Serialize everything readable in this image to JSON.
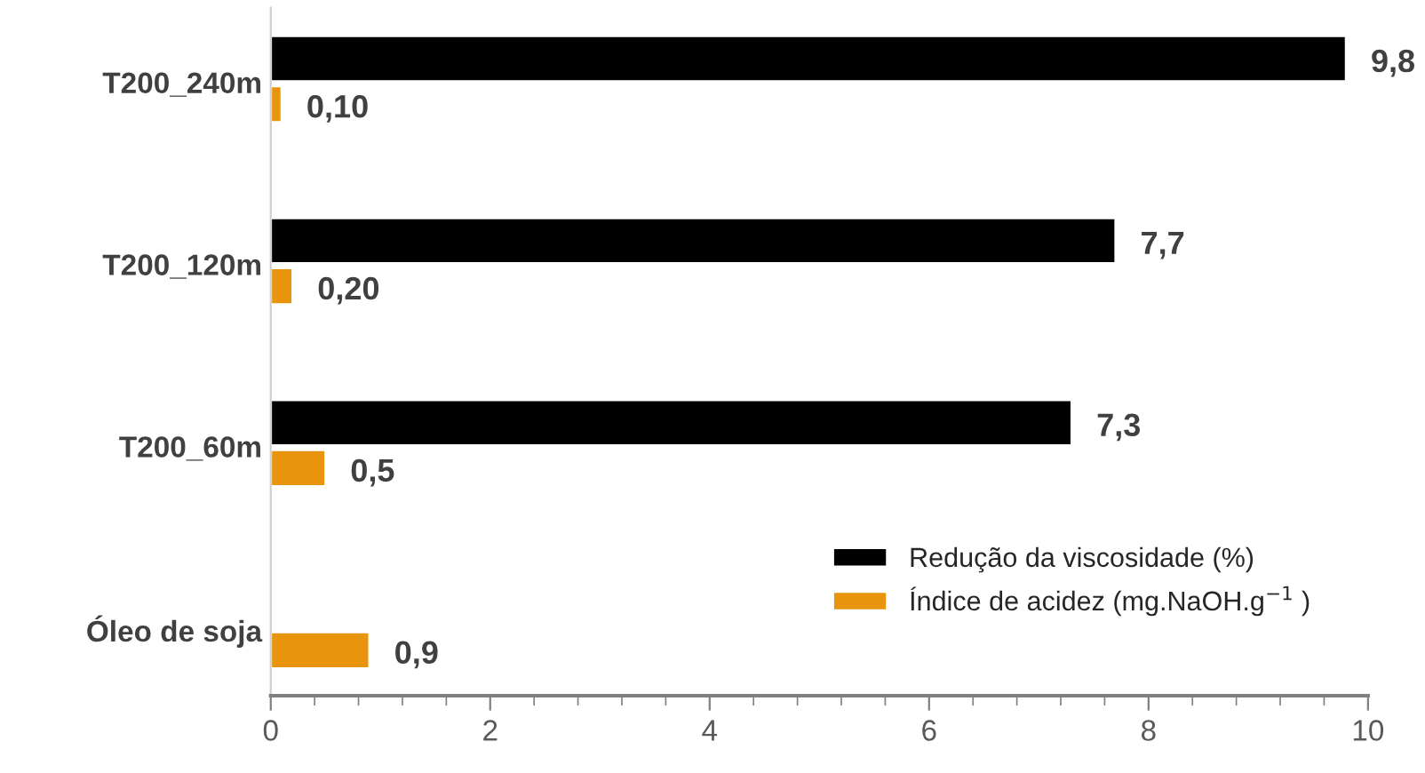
{
  "chart_data": {
    "type": "bar",
    "orientation": "horizontal",
    "categories": [
      "T200_240m",
      "T200_120m",
      "T200_60m",
      "Óleo de soja"
    ],
    "series": [
      {
        "name": "Redução da viscosidade (%)",
        "color": "#000000",
        "values": [
          9.8,
          7.7,
          7.3,
          null
        ],
        "value_labels": [
          "9,8",
          "7,7",
          "7,3",
          null
        ]
      },
      {
        "name": "Índice de acidez (mg.NaOH.g$^{−1}$ )",
        "color": "#e8940c",
        "values": [
          0.1,
          0.2,
          0.5,
          0.9
        ],
        "value_labels": [
          "0,10",
          "0,20",
          "0,5",
          "0,9"
        ]
      }
    ],
    "xlim": [
      0,
      10
    ],
    "xticks": [
      0,
      2,
      4,
      6,
      8,
      10
    ],
    "grid": false,
    "legend": "bottom right"
  }
}
